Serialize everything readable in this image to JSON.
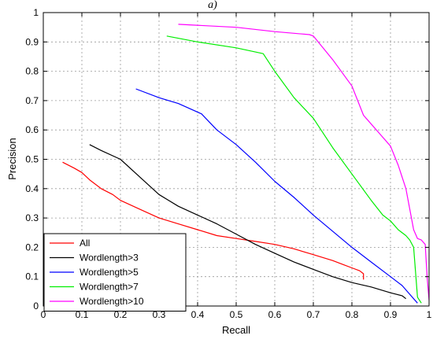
{
  "caption": "a)",
  "chart_data": {
    "type": "line",
    "xlabel": "Recall",
    "ylabel": "Precision",
    "xlim": [
      0,
      1
    ],
    "ylim": [
      0,
      1
    ],
    "grid": true,
    "legend_position": "bottom-left",
    "x_ticks": [
      "0",
      "0.1",
      "0.2",
      "0.3",
      "0.4",
      "0.5",
      "0.6",
      "0.7",
      "0.8",
      "0.9",
      "1"
    ],
    "y_ticks": [
      "0",
      "0.1",
      "0.2",
      "0.3",
      "0.4",
      "0.5",
      "0.6",
      "0.7",
      "0.8",
      "0.9",
      "1"
    ],
    "series": [
      {
        "name": "All",
        "color": "#ff0000",
        "x": [
          0.05,
          0.08,
          0.1,
          0.12,
          0.15,
          0.18,
          0.2,
          0.25,
          0.3,
          0.35,
          0.4,
          0.45,
          0.5,
          0.55,
          0.6,
          0.65,
          0.7,
          0.75,
          0.78,
          0.8,
          0.82,
          0.83,
          0.83
        ],
        "y": [
          0.49,
          0.47,
          0.455,
          0.43,
          0.4,
          0.38,
          0.36,
          0.33,
          0.3,
          0.28,
          0.26,
          0.24,
          0.23,
          0.22,
          0.21,
          0.195,
          0.175,
          0.155,
          0.14,
          0.13,
          0.12,
          0.11,
          0.09
        ]
      },
      {
        "name": "Wordlength>3",
        "color": "#000000",
        "x": [
          0.12,
          0.15,
          0.2,
          0.25,
          0.3,
          0.35,
          0.4,
          0.45,
          0.5,
          0.55,
          0.6,
          0.65,
          0.7,
          0.75,
          0.8,
          0.85,
          0.9,
          0.93,
          0.94
        ],
        "y": [
          0.55,
          0.53,
          0.5,
          0.44,
          0.38,
          0.34,
          0.31,
          0.28,
          0.245,
          0.21,
          0.18,
          0.15,
          0.125,
          0.1,
          0.08,
          0.065,
          0.045,
          0.035,
          0.025
        ]
      },
      {
        "name": "Wordlength>5",
        "color": "#0000ff",
        "x": [
          0.24,
          0.3,
          0.35,
          0.41,
          0.45,
          0.5,
          0.55,
          0.6,
          0.65,
          0.7,
          0.75,
          0.8,
          0.85,
          0.9,
          0.93,
          0.95,
          0.97
        ],
        "y": [
          0.74,
          0.71,
          0.69,
          0.655,
          0.6,
          0.55,
          0.49,
          0.425,
          0.37,
          0.31,
          0.255,
          0.2,
          0.15,
          0.1,
          0.07,
          0.04,
          0.01
        ]
      },
      {
        "name": "Wordlength>7",
        "color": "#00ee00",
        "x": [
          0.32,
          0.4,
          0.5,
          0.57,
          0.6,
          0.65,
          0.7,
          0.75,
          0.8,
          0.85,
          0.88,
          0.9,
          0.92,
          0.94,
          0.95,
          0.96,
          0.97,
          0.98
        ],
        "y": [
          0.92,
          0.9,
          0.88,
          0.86,
          0.8,
          0.71,
          0.64,
          0.54,
          0.45,
          0.36,
          0.31,
          0.29,
          0.26,
          0.24,
          0.225,
          0.2,
          0.03,
          0.01
        ]
      },
      {
        "name": "Wordlength>10",
        "color": "#ff00ff",
        "x": [
          0.35,
          0.5,
          0.6,
          0.69,
          0.7,
          0.75,
          0.8,
          0.83,
          0.85,
          0.87,
          0.9,
          0.92,
          0.94,
          0.95,
          0.96,
          0.97,
          0.98,
          0.99,
          0.995,
          1.0
        ],
        "y": [
          0.96,
          0.95,
          0.935,
          0.925,
          0.92,
          0.84,
          0.75,
          0.65,
          0.62,
          0.59,
          0.545,
          0.48,
          0.4,
          0.33,
          0.26,
          0.23,
          0.225,
          0.21,
          0.1,
          0.02
        ]
      }
    ]
  }
}
